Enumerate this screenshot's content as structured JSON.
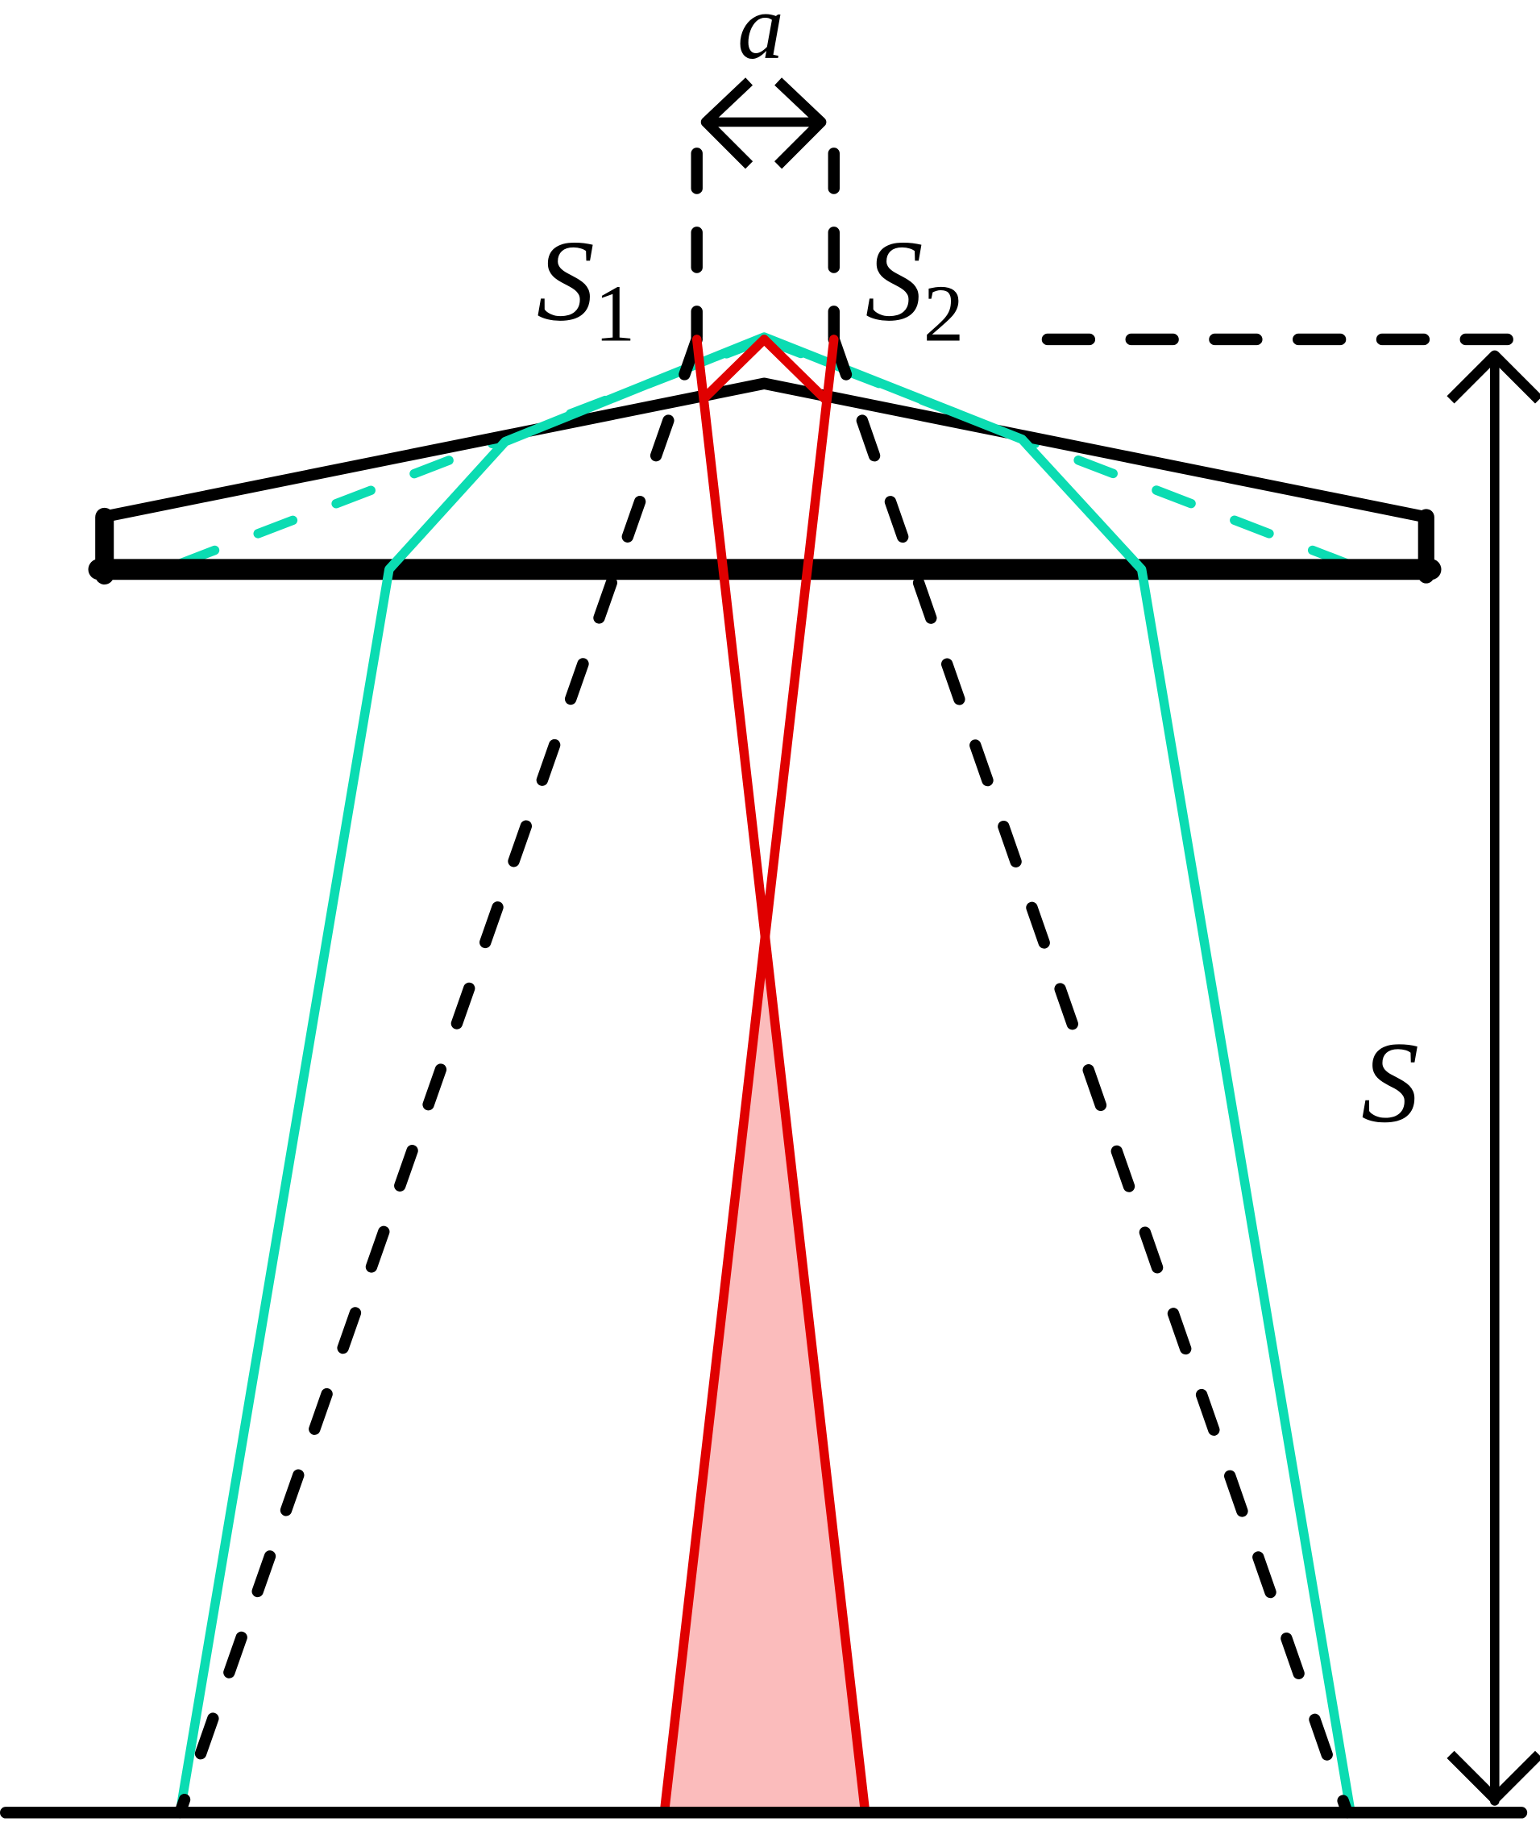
{
  "labels": {
    "separation": "a",
    "source1": {
      "symbol": "S",
      "subscript": "1"
    },
    "source2": {
      "symbol": "S",
      "subscript": "2"
    },
    "distance": "S"
  }
}
